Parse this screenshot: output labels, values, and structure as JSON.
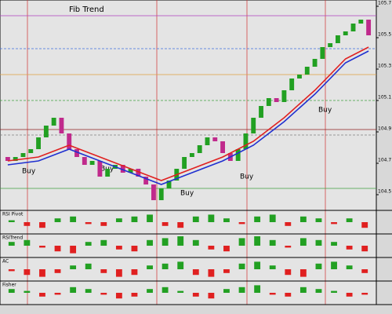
{
  "header": {
    "title": "Fib Trend"
  },
  "annotations": [
    "Buy",
    "Buy",
    "Buy",
    "Buy",
    "Buy"
  ],
  "chart_data": {
    "type": "candlestick",
    "up_color": "#22a022",
    "down_color": "#c02a8c",
    "ylim": [
      104.4,
      105.74
    ],
    "yticks": [
      104.5,
      104.7,
      104.9,
      105.1,
      105.3,
      105.5,
      105.7
    ],
    "open": [
      104.74,
      104.715,
      104.74,
      104.765,
      104.79,
      104.865,
      104.94,
      104.99,
      104.89,
      104.79,
      104.74,
      104.69,
      104.715,
      104.615,
      104.665,
      104.69,
      104.64,
      104.665,
      104.615,
      104.565,
      104.465,
      104.54,
      104.59,
      104.665,
      104.74,
      104.765,
      104.815,
      104.865,
      104.84,
      104.765,
      104.715,
      104.79,
      104.89,
      104.99,
      105.065,
      105.115,
      105.09,
      105.165,
      105.24,
      105.265,
      105.315,
      105.365,
      105.44,
      105.465,
      105.515,
      105.54,
      105.59,
      105.615
    ],
    "close": [
      104.715,
      104.74,
      104.765,
      104.79,
      104.865,
      104.94,
      104.99,
      104.89,
      104.79,
      104.74,
      104.69,
      104.715,
      104.615,
      104.665,
      104.69,
      104.64,
      104.665,
      104.615,
      104.565,
      104.465,
      104.54,
      104.59,
      104.665,
      104.74,
      104.765,
      104.815,
      104.865,
      104.84,
      104.765,
      104.715,
      104.79,
      104.89,
      104.99,
      105.065,
      105.115,
      105.09,
      105.165,
      105.24,
      105.265,
      105.315,
      105.365,
      105.44,
      105.465,
      105.515,
      105.54,
      105.59,
      105.615,
      105.515
    ],
    "series": [
      {
        "color": "#e02020",
        "x": [
          0,
          4,
          8,
          12,
          16,
          20,
          24,
          28,
          32,
          36,
          40,
          44,
          47
        ],
        "values": [
          104.715,
          104.74,
          104.815,
          104.74,
          104.665,
          104.59,
          104.665,
          104.74,
          104.84,
          104.99,
          105.165,
          105.365,
          105.44
        ]
      },
      {
        "color": "#2030d0",
        "x": [
          0,
          4,
          8,
          12,
          16,
          20,
          24,
          28,
          32,
          36,
          40,
          44,
          47
        ],
        "values": [
          104.69,
          104.715,
          104.79,
          104.715,
          104.64,
          104.565,
          104.64,
          104.715,
          104.815,
          104.965,
          105.14,
          105.34,
          105.415
        ]
      }
    ],
    "levels": [
      {
        "value": 105.64,
        "color": "#b040c0"
      },
      {
        "value": 105.43,
        "color": "#4070e0"
      },
      {
        "value": 105.265,
        "color": "#e0a040"
      },
      {
        "value": 105.1,
        "color": "#40a040"
      },
      {
        "value": 104.915,
        "color": "#902020"
      },
      {
        "value": 104.88,
        "color": "#808080"
      },
      {
        "value": 104.54,
        "color": "#40a040"
      }
    ]
  },
  "indicators": [
    {
      "label": "RSI Pivot",
      "pos_color": "#22a022",
      "neg_color": "#e02020",
      "ylim": [
        -5,
        5
      ],
      "values": [
        1,
        -2,
        -3,
        2,
        3,
        -1,
        -2,
        2,
        3,
        4,
        -2,
        -3,
        3,
        4,
        2,
        -1,
        3,
        4,
        -2,
        3,
        2,
        -1,
        2,
        -3
      ]
    },
    {
      "label": "RSITrend",
      "pos_color": "#22a022",
      "neg_color": "#e02020",
      "ylim": [
        -5,
        5
      ],
      "values": [
        2,
        3,
        -1,
        -3,
        -4,
        2,
        3,
        -2,
        -3,
        3,
        4,
        5,
        3,
        -2,
        -3,
        4,
        5,
        3,
        -1,
        4,
        3,
        2,
        -2,
        -3
      ]
    },
    {
      "label": "AC",
      "pos_color": "#22a022",
      "neg_color": "#e02020",
      "ylim": [
        -5,
        5
      ],
      "values": [
        -1,
        -3,
        -4,
        -2,
        2,
        3,
        -2,
        -4,
        -3,
        2,
        3,
        4,
        -3,
        -4,
        -2,
        3,
        4,
        2,
        -3,
        -4,
        3,
        4,
        2,
        -2
      ]
    },
    {
      "label": "Fisher",
      "pos_color": "#22a022",
      "neg_color": "#e02020",
      "ylim": [
        -5,
        5
      ],
      "values": [
        2,
        1,
        -2,
        -1,
        3,
        2,
        -1,
        -3,
        -2,
        2,
        3,
        1,
        -2,
        -3,
        2,
        3,
        4,
        -1,
        -2,
        3,
        2,
        1,
        -2,
        -1
      ]
    }
  ]
}
